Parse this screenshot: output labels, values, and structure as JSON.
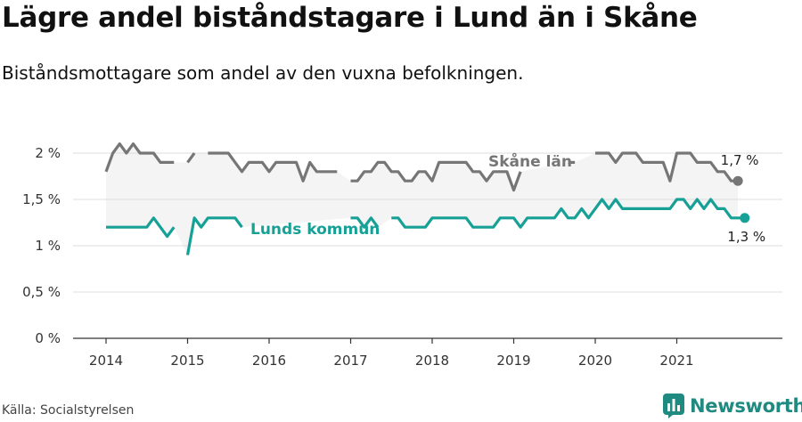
{
  "header": {
    "title": "Lägre andel biståndstagare i Lund än i Skåne",
    "subtitle": "Biståndsmottagare som andel av den vuxna befolkningen."
  },
  "footer": {
    "source": "Källa: Socialstyrelsen",
    "brand": "Newsworthy"
  },
  "colors": {
    "skane": "#767676",
    "lund": "#17a095",
    "band": "#f4f4f4",
    "grid": "#dddddd",
    "brand": "#1f8a80"
  },
  "chart_data": {
    "type": "line",
    "x_unit": "month index from Jan 2014",
    "ylim": [
      0,
      2.3
    ],
    "yticks": [
      0,
      0.5,
      1,
      1.5,
      2
    ],
    "ytick_labels": [
      "0 %",
      "0,5 %",
      "1 %",
      "1,5 %",
      "2 %"
    ],
    "xticks": [
      0,
      12,
      24,
      36,
      48,
      60,
      72,
      84
    ],
    "xtick_labels": [
      "2014",
      "2015",
      "2016",
      "2017",
      "2018",
      "2019",
      "2020",
      "2021"
    ],
    "grid": true,
    "series": [
      {
        "name": "Skåne län",
        "end_label": "1,7 %",
        "values": [
          1.8,
          2.0,
          2.1,
          2.0,
          2.1,
          2.0,
          2.0,
          2.0,
          1.9,
          1.9,
          1.9,
          null,
          1.9,
          2.0,
          null,
          2.0,
          2.0,
          2.0,
          2.0,
          1.9,
          1.8,
          1.9,
          1.9,
          1.9,
          1.8,
          1.9,
          1.9,
          1.9,
          1.9,
          1.7,
          1.9,
          1.8,
          1.8,
          1.8,
          1.8,
          null,
          1.7,
          1.7,
          1.8,
          1.8,
          1.9,
          1.9,
          1.8,
          1.8,
          1.7,
          1.7,
          1.8,
          1.8,
          1.7,
          1.9,
          1.9,
          1.9,
          1.9,
          1.9,
          1.8,
          1.8,
          1.7,
          1.8,
          1.8,
          1.8,
          1.6,
          1.8,
          null,
          null,
          null,
          null,
          null,
          null,
          1.9,
          1.9,
          null,
          null,
          2.0,
          2.0,
          2.0,
          1.9,
          2.0,
          2.0,
          2.0,
          1.9,
          1.9,
          1.9,
          1.9,
          1.7,
          2.0,
          2.0,
          2.0,
          1.9,
          1.9,
          1.9,
          1.8,
          1.8,
          1.7,
          1.7
        ]
      },
      {
        "name": "Lunds kommun",
        "end_label": "1,3 %",
        "values": [
          1.2,
          1.2,
          1.2,
          1.2,
          1.2,
          1.2,
          1.2,
          1.3,
          1.2,
          1.1,
          1.2,
          null,
          0.9,
          1.3,
          1.2,
          1.3,
          1.3,
          1.3,
          1.3,
          1.3,
          1.2,
          null,
          null,
          null,
          null,
          null,
          null,
          null,
          null,
          null,
          null,
          null,
          null,
          null,
          null,
          null,
          1.3,
          1.3,
          1.2,
          1.3,
          1.2,
          null,
          1.3,
          1.3,
          1.2,
          1.2,
          1.2,
          1.2,
          1.3,
          1.3,
          1.3,
          1.3,
          1.3,
          1.3,
          1.2,
          1.2,
          1.2,
          1.2,
          1.3,
          1.3,
          1.3,
          1.2,
          1.3,
          1.3,
          1.3,
          1.3,
          1.3,
          1.4,
          1.3,
          1.3,
          1.4,
          1.3,
          1.4,
          1.5,
          1.4,
          1.5,
          1.4,
          1.4,
          1.4,
          1.4,
          1.4,
          1.4,
          1.4,
          1.4,
          1.5,
          1.5,
          1.4,
          1.5,
          1.4,
          1.5,
          1.4,
          1.4,
          1.3,
          1.3,
          1.3
        ]
      }
    ]
  }
}
